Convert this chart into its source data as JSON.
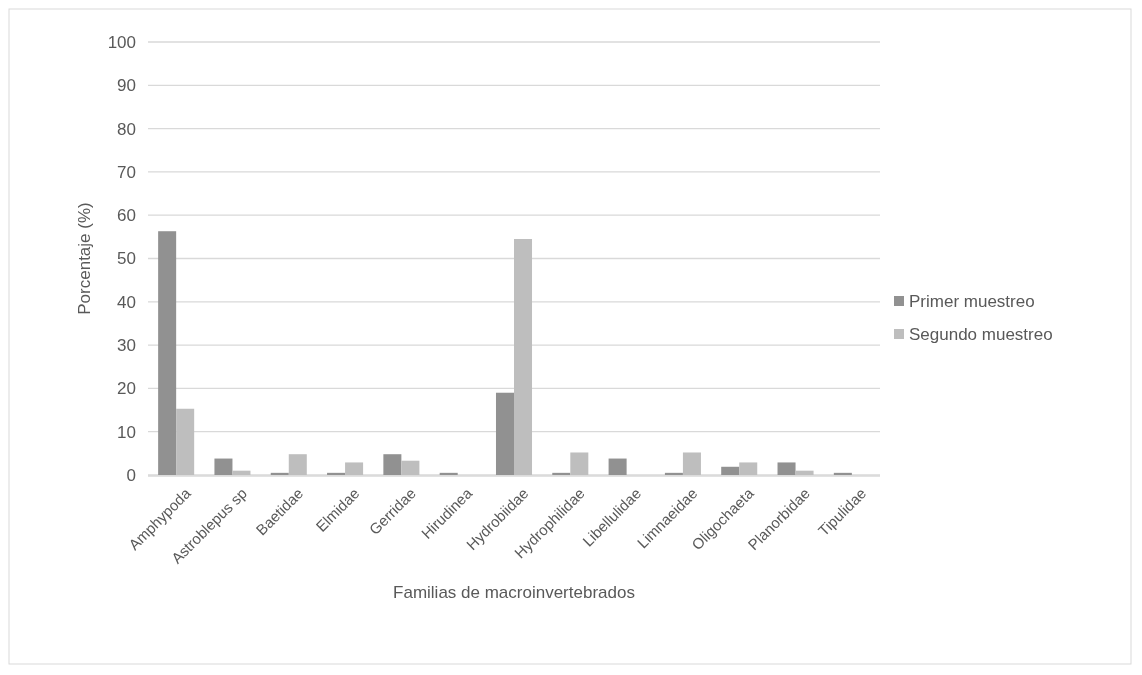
{
  "chart_data": {
    "type": "bar",
    "xlabel": "Familias de macroinvertebrados",
    "ylabel": "Porcentaje (%)",
    "categories": [
      "Amphypoda",
      "Astroblepus sp",
      "Baetidae",
      "Elmidae",
      "Gerridae",
      "Hirudinea",
      "Hydrobiidae",
      "Hydrophilidae",
      "Libellulidae",
      "Limnaeidae",
      "Oligochaeta",
      "Planorbidae",
      "Tipulidae"
    ],
    "series": [
      {
        "name": "Primer muestreo",
        "color": "#919191",
        "values": [
          56.3,
          3.8,
          0.5,
          0.5,
          4.8,
          0.5,
          19,
          0.5,
          3.8,
          0.5,
          1.9,
          2.9,
          0.5
        ]
      },
      {
        "name": "Segundo muestreo",
        "color": "#bebebe",
        "values": [
          15.3,
          1,
          4.8,
          2.9,
          3.3,
          0,
          54.5,
          5.2,
          0,
          5.2,
          2.9,
          1,
          0
        ]
      }
    ],
    "ylim": [
      0,
      100
    ],
    "yticks": [
      0,
      10,
      20,
      30,
      40,
      50,
      60,
      70,
      80,
      90,
      100
    ],
    "grid": "y",
    "legend": "right"
  }
}
